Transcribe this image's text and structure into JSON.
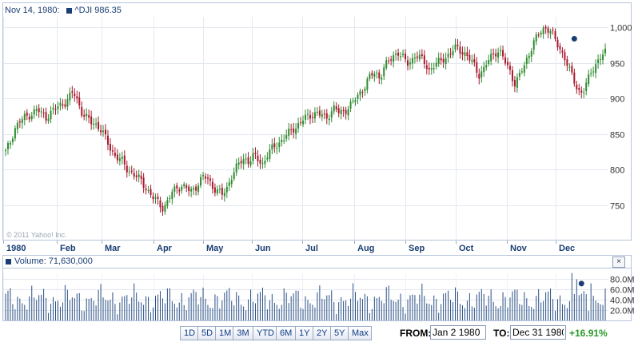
{
  "legend": {
    "date": "Nov 14, 1980:",
    "series": "^DJI 986.35"
  },
  "volume_legend": {
    "label": "Volume: 71,630,000"
  },
  "close_label": "×",
  "watermark": "© 2011 Yahoo! Inc.",
  "range_buttons": [
    "1D",
    "5D",
    "1M",
    "3M",
    "YTD",
    "6M",
    "1Y",
    "2Y",
    "5Y",
    "Max"
  ],
  "from": {
    "label": "FROM:",
    "value": "Jan 2 1980"
  },
  "to": {
    "label": "TO:",
    "value": "Dec 31 1980"
  },
  "change": "+16.91%",
  "colors": {
    "up": "#2e8b2e",
    "down": "#a8182e",
    "volume": "#2a4f85",
    "marker": "#1a3e73",
    "change": "#2a9a2a"
  },
  "chart_data": [
    {
      "type": "candlestick",
      "title": "^DJI",
      "x_tick_labels": [
        "1980",
        "Feb",
        "Mar",
        "Apr",
        "May",
        "Jun",
        "Jul",
        "Aug",
        "Sep",
        "Oct",
        "Nov",
        "Dec"
      ],
      "y_ticks": [
        "750",
        "800",
        "850",
        "900",
        "950",
        "1,000"
      ],
      "ylim": [
        700,
        1015
      ],
      "grid": true,
      "marker": {
        "date": "Nov 14, 1980",
        "value": 986.35
      },
      "monthly_anchors": [
        {
          "month": "Jan",
          "values": [
            824,
            838,
            858,
            866,
            872,
            876,
            880,
            884,
            878,
            874,
            880,
            885,
            890,
            894
          ]
        },
        {
          "month": "Feb",
          "values": [
            900,
            909,
            896,
            880,
            872,
            866,
            864,
            858,
            846,
            832,
            822,
            816,
            810,
            800
          ]
        },
        {
          "month": "Mar",
          "values": [
            796,
            790,
            784,
            776,
            766,
            758,
            752,
            746,
            756,
            768,
            774,
            778,
            774,
            768
          ]
        },
        {
          "month": "Apr",
          "values": [
            774,
            784,
            790,
            785,
            776,
            770,
            764,
            772,
            790,
            800,
            810,
            816
          ]
        },
        {
          "month": "May",
          "values": [
            812,
            818,
            814,
            808,
            820,
            828,
            834,
            840,
            846,
            852
          ]
        },
        {
          "month": "Jun",
          "values": [
            858,
            864,
            870,
            874,
            878,
            880,
            876,
            872,
            880,
            888
          ]
        },
        {
          "month": "Jul",
          "values": [
            878,
            882,
            888,
            894,
            902,
            912,
            922,
            932,
            936,
            930
          ]
        },
        {
          "month": "Aug",
          "values": [
            944,
            952,
            960,
            966,
            958,
            948,
            954,
            962,
            956,
            950
          ]
        },
        {
          "month": "Sep",
          "values": [
            940,
            946,
            950,
            956,
            960,
            966,
            972,
            968,
            962
          ]
        },
        {
          "month": "Oct",
          "values": [
            954,
            946,
            934,
            940,
            952,
            962,
            968,
            962,
            948,
            938
          ]
        },
        {
          "month": "Nov",
          "values": [
            920,
            932,
            946,
            962,
            978,
            986,
            998,
            1000,
            994,
            980
          ]
        },
        {
          "month": "Dec",
          "values": [
            970,
            958,
            940,
            926,
            912,
            908,
            922,
            940,
            950,
            958,
            964
          ]
        }
      ]
    },
    {
      "type": "bar",
      "title": "Volume",
      "y_ticks": [
        "20.0M",
        "40.0M",
        "60.0M",
        "80.0M"
      ],
      "ylim": [
        0,
        90
      ],
      "unit": "M",
      "marker": {
        "date": "Nov 14, 1980",
        "value": 71.63
      }
    }
  ]
}
